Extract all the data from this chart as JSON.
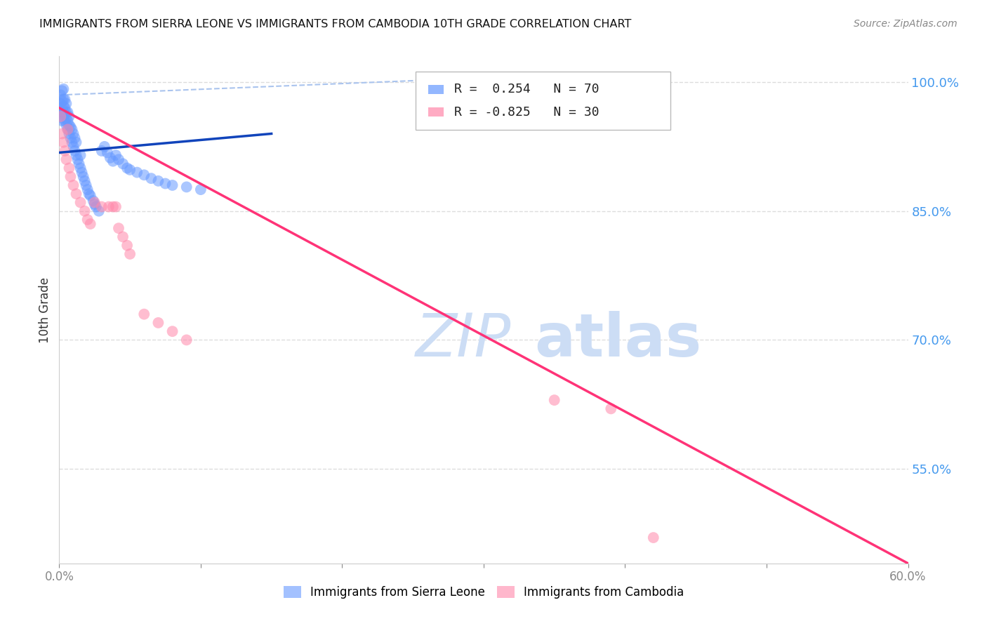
{
  "title": "IMMIGRANTS FROM SIERRA LEONE VS IMMIGRANTS FROM CAMBODIA 10TH GRADE CORRELATION CHART",
  "source": "Source: ZipAtlas.com",
  "ylabel": "10th Grade",
  "legend_label_blue": "Immigrants from Sierra Leone",
  "legend_label_pink": "Immigrants from Cambodia",
  "R_blue": 0.254,
  "N_blue": 70,
  "R_pink": -0.825,
  "N_pink": 30,
  "xlim": [
    0.0,
    0.6
  ],
  "ylim": [
    0.44,
    1.03
  ],
  "right_yticks": [
    1.0,
    0.85,
    0.7,
    0.55
  ],
  "right_ytick_labels": [
    "100.0%",
    "85.0%",
    "70.0%",
    "55.0%"
  ],
  "xtick_positions": [
    0.0,
    0.1,
    0.2,
    0.3,
    0.4,
    0.5,
    0.6
  ],
  "xtick_labels": [
    "0.0%",
    "",
    "",
    "",
    "",
    "",
    "60.0%"
  ],
  "grid_color": "#dddddd",
  "blue_color": "#6699ff",
  "pink_color": "#ff88aa",
  "blue_line_color": "#1144bb",
  "pink_line_color": "#ff3377",
  "blue_dash_color": "#aac4ee",
  "watermark_color": "#ccddf5",
  "blue_x": [
    0.001,
    0.001,
    0.001,
    0.002,
    0.002,
    0.002,
    0.002,
    0.002,
    0.003,
    0.003,
    0.003,
    0.003,
    0.003,
    0.004,
    0.004,
    0.004,
    0.004,
    0.005,
    0.005,
    0.005,
    0.005,
    0.006,
    0.006,
    0.006,
    0.007,
    0.007,
    0.007,
    0.008,
    0.008,
    0.009,
    0.009,
    0.01,
    0.01,
    0.011,
    0.011,
    0.012,
    0.012,
    0.013,
    0.014,
    0.015,
    0.015,
    0.016,
    0.017,
    0.018,
    0.019,
    0.02,
    0.021,
    0.022,
    0.024,
    0.025,
    0.026,
    0.028,
    0.03,
    0.032,
    0.034,
    0.036,
    0.038,
    0.04,
    0.042,
    0.045,
    0.048,
    0.05,
    0.055,
    0.06,
    0.065,
    0.07,
    0.075,
    0.08,
    0.09,
    0.1
  ],
  "blue_y": [
    0.965,
    0.975,
    0.985,
    0.955,
    0.962,
    0.97,
    0.978,
    0.99,
    0.958,
    0.965,
    0.972,
    0.98,
    0.992,
    0.955,
    0.963,
    0.97,
    0.98,
    0.95,
    0.958,
    0.965,
    0.975,
    0.945,
    0.955,
    0.965,
    0.94,
    0.95,
    0.96,
    0.935,
    0.948,
    0.93,
    0.945,
    0.925,
    0.94,
    0.92,
    0.935,
    0.915,
    0.93,
    0.91,
    0.905,
    0.9,
    0.915,
    0.895,
    0.89,
    0.885,
    0.88,
    0.875,
    0.87,
    0.868,
    0.862,
    0.858,
    0.855,
    0.85,
    0.92,
    0.925,
    0.918,
    0.912,
    0.908,
    0.915,
    0.91,
    0.905,
    0.9,
    0.898,
    0.895,
    0.892,
    0.888,
    0.885,
    0.882,
    0.88,
    0.878,
    0.875
  ],
  "pink_x": [
    0.001,
    0.002,
    0.003,
    0.004,
    0.005,
    0.006,
    0.007,
    0.008,
    0.01,
    0.012,
    0.015,
    0.018,
    0.02,
    0.022,
    0.025,
    0.03,
    0.035,
    0.038,
    0.04,
    0.042,
    0.045,
    0.048,
    0.05,
    0.06,
    0.07,
    0.08,
    0.09,
    0.35,
    0.39,
    0.42
  ],
  "pink_y": [
    0.96,
    0.94,
    0.93,
    0.92,
    0.91,
    0.945,
    0.9,
    0.89,
    0.88,
    0.87,
    0.86,
    0.85,
    0.84,
    0.835,
    0.86,
    0.855,
    0.855,
    0.855,
    0.855,
    0.83,
    0.82,
    0.81,
    0.8,
    0.73,
    0.72,
    0.71,
    0.7,
    0.63,
    0.62,
    0.47
  ],
  "blue_line_x0": 0.0,
  "blue_line_x1": 0.15,
  "blue_line_y0": 0.918,
  "blue_line_y1": 0.94,
  "pink_line_x0": 0.0,
  "pink_line_x1": 0.6,
  "pink_line_y0": 0.97,
  "pink_line_y1": 0.44,
  "dash_line_x0": 0.0,
  "dash_line_x1": 0.3,
  "dash_line_y0": 0.985,
  "dash_line_y1": 1.005
}
